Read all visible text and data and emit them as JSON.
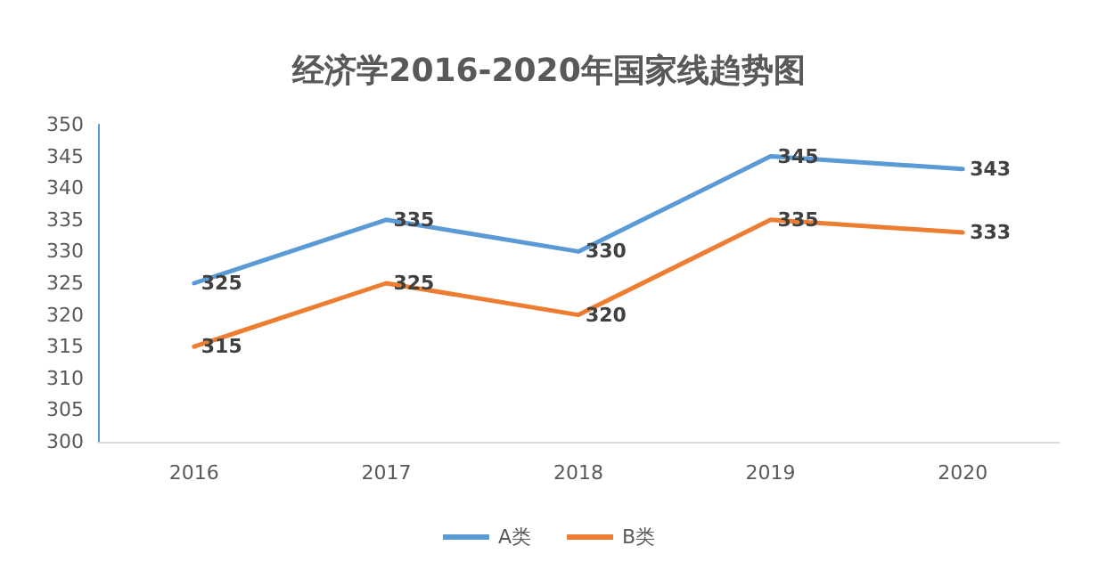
{
  "chart_data": {
    "type": "line",
    "title": "经济学2016-2020年国家线趋势图",
    "categories": [
      "2016",
      "2017",
      "2018",
      "2019",
      "2020"
    ],
    "series": [
      {
        "name": "A类",
        "color": "#5b9bd5",
        "values": [
          325,
          335,
          330,
          345,
          343
        ]
      },
      {
        "name": "B类",
        "color": "#ed7d31",
        "values": [
          315,
          325,
          320,
          335,
          333
        ]
      }
    ],
    "ylim": [
      300,
      350
    ],
    "yticks": [
      300,
      305,
      310,
      315,
      320,
      325,
      330,
      335,
      340,
      345,
      350
    ],
    "grid": false,
    "legend": "bottom",
    "data_labels": true,
    "marker": "none",
    "line_style": "solid"
  }
}
